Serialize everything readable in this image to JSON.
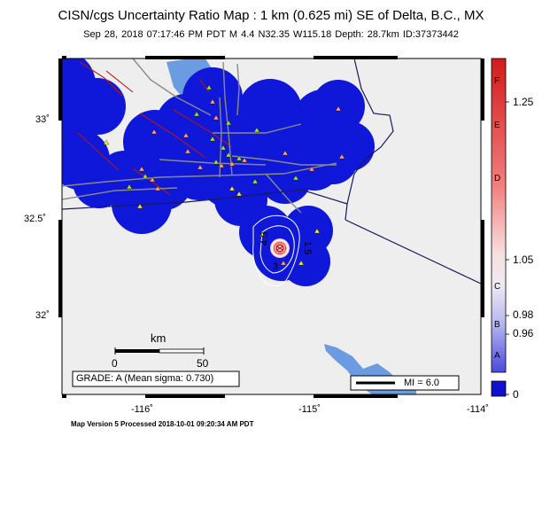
{
  "header": {
    "title": "CISN/cgs Uncertainty Ratio Map : 1 km (0.625 mi) SE of Delta, B.C., MX",
    "subtitle": "Sep 28, 2018 07:17:46 PM PDT   M 4.4   N32.35 W115.18   Depth: 28.7km   ID:37373442"
  },
  "axes": {
    "lat_ticks": [
      "33˚",
      "32.5˚",
      "32˚"
    ],
    "lon_ticks": [
      "-116˚",
      "-115˚",
      "-114˚"
    ]
  },
  "scale_bar": {
    "unit": "km",
    "start": "0",
    "end": "50"
  },
  "grade_box": "GRADE: A (Mean sigma: 0.730)",
  "mi_legend": "MI = 6.0",
  "contour_labels": [
    "4.5",
    "1.5",
    "3"
  ],
  "colorbar": {
    "letters": [
      "F",
      "E",
      "D",
      "C",
      "B",
      "A"
    ],
    "values": [
      "1.25",
      "1.05",
      "0.98",
      "0.96",
      "0"
    ]
  },
  "footer": "Map Version 5 Processed 2018-10-01 09:20:34 AM PDT",
  "colors": {
    "ocean": "#6b9be0",
    "land": "#eeeeee",
    "uncertainty_blue": "#0f17d8",
    "colorbar_top": "#d11a1a",
    "colorbar_bottom": "#1010d0"
  }
}
